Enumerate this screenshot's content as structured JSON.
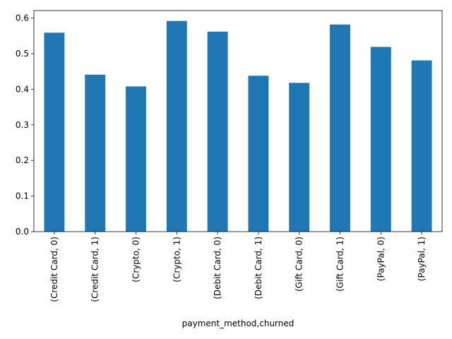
{
  "chart_data": {
    "type": "bar",
    "title": "",
    "xlabel": "payment_method,churned",
    "ylabel": "",
    "categories": [
      "(Credit Card, 0)",
      "(Credit Card, 1)",
      "(Crypto, 0)",
      "(Crypto, 1)",
      "(Debit Card, 0)",
      "(Debit Card, 1)",
      "(Gift Card, 0)",
      "(Gift Card, 1)",
      "(PayPal, 0)",
      "(PayPal, 1)"
    ],
    "values": [
      0.559,
      0.441,
      0.408,
      0.592,
      0.562,
      0.438,
      0.418,
      0.582,
      0.519,
      0.481
    ],
    "ylim": [
      0,
      0.621
    ],
    "yticks": [
      0.0,
      0.1,
      0.2,
      0.3,
      0.4,
      0.5,
      0.6
    ],
    "ytick_labels": [
      "0.0",
      "0.1",
      "0.2",
      "0.3",
      "0.4",
      "0.5",
      "0.6"
    ],
    "bar_color": "#1f77b4",
    "grid": false,
    "legend": "none"
  }
}
